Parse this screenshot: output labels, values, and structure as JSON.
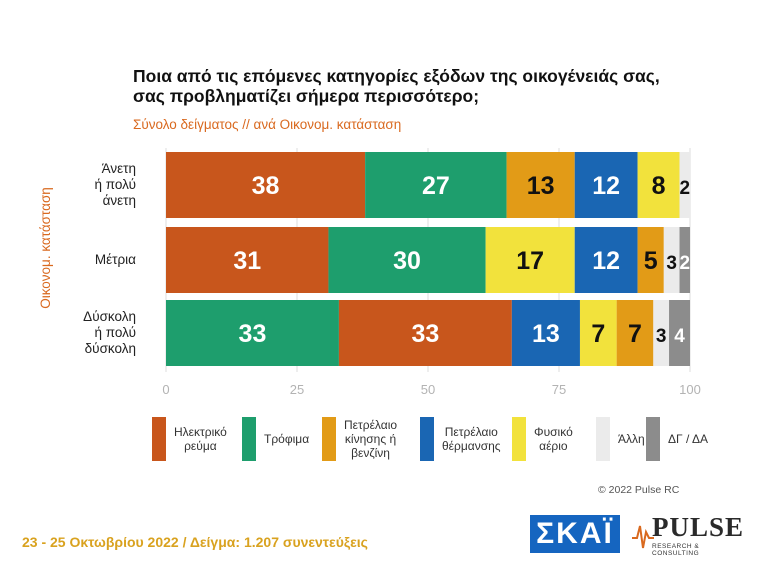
{
  "header": {
    "title_line1": "Ποια από τις επόμενες κατηγορίες εξόδων της οικογένειάς σας,",
    "title_line2": "σας προβληματίζει σήμερα περισσότερο;",
    "subtitle": "Σύνολο δείγματος // ανά Οικονομ. κατάσταση"
  },
  "chart_data": {
    "type": "bar",
    "orientation": "horizontal-stacked",
    "ylabel": "Οικονομ. κατάσταση",
    "xlim": [
      0,
      100
    ],
    "xticks": [
      "0",
      "25",
      "50",
      "75",
      "100"
    ],
    "rows": [
      {
        "label": [
          "Άνετη",
          "ή πολύ",
          "άνετη"
        ],
        "segments": [
          {
            "series": "Ηλεκτρικό ρεύμα",
            "value": 38
          },
          {
            "series": "Τρόφιμα",
            "value": 27
          },
          {
            "series": "Πετρέλαιο κίνησης ή βενζίνη",
            "value": 13
          },
          {
            "series": "Πετρέλαιο θέρμανσης",
            "value": 12
          },
          {
            "series": "Φυσικό αέριο",
            "value": 8
          },
          {
            "series": "Άλλη",
            "value": 2
          }
        ]
      },
      {
        "label": [
          "Μέτρια"
        ],
        "segments": [
          {
            "series": "Ηλεκτρικό ρεύμα",
            "value": 31
          },
          {
            "series": "Τρόφιμα",
            "value": 30
          },
          {
            "series": "Φυσικό αέριο",
            "value": 17
          },
          {
            "series": "Πετρέλαιο θέρμανσης",
            "value": 12
          },
          {
            "series": "Πετρέλαιο κίνησης ή βενζίνη",
            "value": 5
          },
          {
            "series": "Άλλη",
            "value": 3
          },
          {
            "series": "ΔΓ / ΔΑ",
            "value": 2
          }
        ]
      },
      {
        "label": [
          "Δύσκολη",
          "ή πολύ",
          "δύσκολη"
        ],
        "segments": [
          {
            "series": "Τρόφιμα",
            "value": 33
          },
          {
            "series": "Ηλεκτρικό ρεύμα",
            "value": 33
          },
          {
            "series": "Πετρέλαιο θέρμανσης",
            "value": 13
          },
          {
            "series": "Φυσικό αέριο",
            "value": 7
          },
          {
            "series": "Πετρέλαιο κίνησης ή βενζίνη",
            "value": 7
          },
          {
            "series": "Άλλη",
            "value": 3
          },
          {
            "series": "ΔΓ / ΔΑ",
            "value": 4
          }
        ]
      }
    ],
    "legend": [
      {
        "name": "Ηλεκτρικό ρεύμα",
        "lines": [
          "Ηλεκτρικό",
          "ρεύμα"
        ],
        "color": "#c8561c",
        "text_color": "#ffffff"
      },
      {
        "name": "Τρόφιμα",
        "lines": [
          "Τρόφιμα"
        ],
        "color": "#1e9e6d",
        "text_color": "#ffffff"
      },
      {
        "name": "Πετρέλαιο κίνησης ή βενζίνη",
        "lines": [
          "Πετρέλαιο",
          "κίνησης ή",
          "βενζίνη"
        ],
        "color": "#e29b17",
        "text_color": "#111111"
      },
      {
        "name": "Πετρέλαιο θέρμανσης",
        "lines": [
          "Πετρέλαιο",
          "θέρμανσης"
        ],
        "color": "#1a66b3",
        "text_color": "#ffffff"
      },
      {
        "name": "Φυσικό αέριο",
        "lines": [
          "Φυσικό",
          "αέριο"
        ],
        "color": "#f2e23c",
        "text_color": "#111111"
      },
      {
        "name": "Άλλη",
        "lines": [
          "Άλλη"
        ],
        "color": "#ebebeb",
        "text_color": "#111111"
      },
      {
        "name": "ΔΓ / ΔΑ",
        "lines": [
          "ΔΓ / ΔΑ"
        ],
        "color": "#8c8c8c",
        "text_color": "#ffffff"
      }
    ],
    "legend_placement": "bottom"
  },
  "footer": {
    "copyright": "© 2022 Pulse RC",
    "fieldwork": "23 - 25  Οκτωβρίου  2022  /  Δείγμα:  1.207 συνεντεύξεις"
  },
  "logos": {
    "skai": "ΣΚΑΪ",
    "pulse": "PULSE",
    "pulse_sub": "RESEARCH & CONSULTING"
  }
}
